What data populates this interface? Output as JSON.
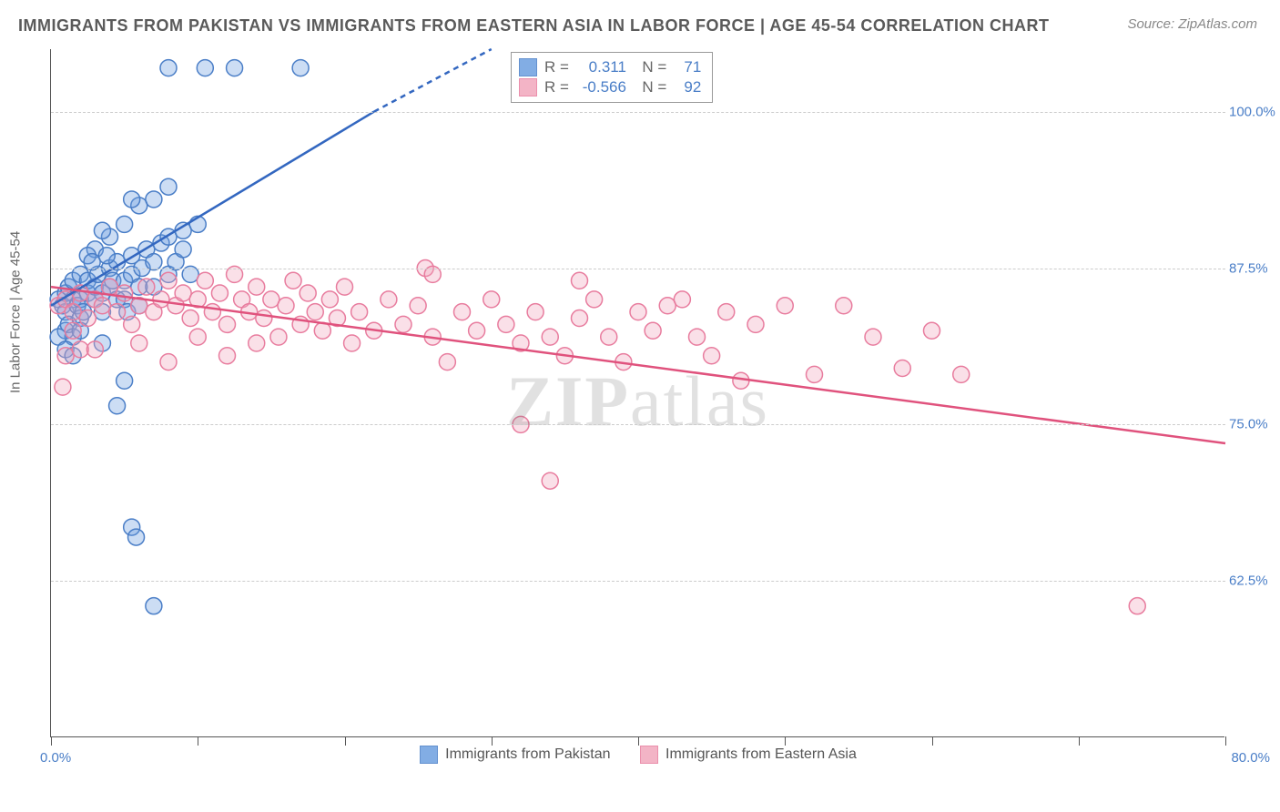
{
  "title": "IMMIGRANTS FROM PAKISTAN VS IMMIGRANTS FROM EASTERN ASIA IN LABOR FORCE | AGE 45-54 CORRELATION CHART",
  "source_label": "Source: ZipAtlas.com",
  "ylabel": "In Labor Force | Age 45-54",
  "watermark": {
    "bold": "ZIP",
    "thin": "atlas"
  },
  "chart": {
    "type": "scatter-with-regression",
    "background_color": "#ffffff",
    "grid_color": "#cccccc",
    "grid_dash": "4,4",
    "axis_color": "#555555",
    "xlim": [
      0,
      80
    ],
    "ylim": [
      50,
      105
    ],
    "yticks": [
      62.5,
      75.0,
      87.5,
      100.0
    ],
    "ytick_labels": [
      "62.5%",
      "75.0%",
      "87.5%",
      "100.0%"
    ],
    "xticks": [
      0,
      10,
      20,
      30,
      40,
      50,
      60,
      70,
      80
    ],
    "xlabel_min": "0.0%",
    "xlabel_max": "80.0%",
    "label_fontsize": 15,
    "label_color": "#4a7ec7",
    "marker_radius": 9,
    "marker_fill_opacity": 0.35,
    "marker_stroke_width": 1.5,
    "line_width": 2.5,
    "series": [
      {
        "name": "Immigrants from Pakistan",
        "color": "#6d9fe0",
        "stroke": "#4a7ec7",
        "line_color": "#3367c0",
        "R": "0.311",
        "N": "71",
        "regression": {
          "x1": 0,
          "y1": 84.5,
          "x2": 22,
          "y2": 100,
          "x2_dash": 30,
          "y2_dash": 105
        },
        "points": [
          [
            0.5,
            85
          ],
          [
            0.8,
            84.5
          ],
          [
            1,
            85.5
          ],
          [
            1,
            84
          ],
          [
            1.2,
            86
          ],
          [
            1.5,
            85
          ],
          [
            1.5,
            86.5
          ],
          [
            1.8,
            84.5
          ],
          [
            2,
            85
          ],
          [
            2,
            87
          ],
          [
            1,
            82.5
          ],
          [
            1.2,
            83
          ],
          [
            1.5,
            82
          ],
          [
            2,
            83.5
          ],
          [
            2.2,
            84
          ],
          [
            2.5,
            85.5
          ],
          [
            2.5,
            86.5
          ],
          [
            3,
            85
          ],
          [
            3,
            86
          ],
          [
            3.2,
            87
          ],
          [
            3.5,
            85.5
          ],
          [
            3.5,
            84
          ],
          [
            4,
            86
          ],
          [
            4,
            87.5
          ],
          [
            4.2,
            86.5
          ],
          [
            4.5,
            85
          ],
          [
            4.5,
            88
          ],
          [
            5,
            86.5
          ],
          [
            5,
            85
          ],
          [
            5.2,
            84
          ],
          [
            5.5,
            87
          ],
          [
            5.5,
            88.5
          ],
          [
            6,
            86
          ],
          [
            6,
            84.5
          ],
          [
            6.2,
            87.5
          ],
          [
            6.5,
            89
          ],
          [
            7,
            86
          ],
          [
            7,
            88
          ],
          [
            7.5,
            89.5
          ],
          [
            8,
            87
          ],
          [
            8,
            90
          ],
          [
            8.5,
            88
          ],
          [
            9,
            89
          ],
          [
            9,
            90.5
          ],
          [
            9.5,
            87
          ],
          [
            10,
            91
          ],
          [
            3,
            89
          ],
          [
            4,
            90
          ],
          [
            5,
            91
          ],
          [
            6,
            92.5
          ],
          [
            7,
            93
          ],
          [
            8,
            94
          ],
          [
            2.5,
            88.5
          ],
          [
            3.5,
            90.5
          ],
          [
            5.5,
            93
          ],
          [
            0.5,
            82
          ],
          [
            1,
            81
          ],
          [
            1.5,
            80.5
          ],
          [
            2,
            82.5
          ],
          [
            3.5,
            81.5
          ],
          [
            5,
            78.5
          ],
          [
            5.5,
            66.8
          ],
          [
            5.8,
            66
          ],
          [
            7,
            60.5
          ],
          [
            8,
            103.5
          ],
          [
            10.5,
            103.5
          ],
          [
            12.5,
            103.5
          ],
          [
            17,
            103.5
          ],
          [
            4.5,
            76.5
          ],
          [
            2.8,
            88
          ],
          [
            3.8,
            88.5
          ]
        ]
      },
      {
        "name": "Immigrants from Eastern Asia",
        "color": "#f2a7bd",
        "stroke": "#e87c9e",
        "line_color": "#e0527d",
        "R": "-0.566",
        "N": "92",
        "regression": {
          "x1": 0,
          "y1": 86,
          "x2": 80,
          "y2": 73.5
        },
        "points": [
          [
            0.5,
            84.5
          ],
          [
            1,
            85
          ],
          [
            1.5,
            84
          ],
          [
            2,
            85.5
          ],
          [
            2.5,
            83.5
          ],
          [
            3,
            85
          ],
          [
            3.5,
            84.5
          ],
          [
            4,
            86
          ],
          [
            4.5,
            84
          ],
          [
            5,
            85.5
          ],
          [
            5.5,
            83
          ],
          [
            6,
            84.5
          ],
          [
            6.5,
            86
          ],
          [
            7,
            84
          ],
          [
            7.5,
            85
          ],
          [
            8,
            86.5
          ],
          [
            8.5,
            84.5
          ],
          [
            9,
            85.5
          ],
          [
            9.5,
            83.5
          ],
          [
            10,
            85
          ],
          [
            10.5,
            86.5
          ],
          [
            11,
            84
          ],
          [
            11.5,
            85.5
          ],
          [
            12,
            83
          ],
          [
            12.5,
            87
          ],
          [
            13,
            85
          ],
          [
            13.5,
            84
          ],
          [
            14,
            86
          ],
          [
            14.5,
            83.5
          ],
          [
            15,
            85
          ],
          [
            15.5,
            82
          ],
          [
            16,
            84.5
          ],
          [
            16.5,
            86.5
          ],
          [
            17,
            83
          ],
          [
            17.5,
            85.5
          ],
          [
            18,
            84
          ],
          [
            18.5,
            82.5
          ],
          [
            19,
            85
          ],
          [
            19.5,
            83.5
          ],
          [
            20,
            86
          ],
          [
            20.5,
            81.5
          ],
          [
            21,
            84
          ],
          [
            22,
            82.5
          ],
          [
            23,
            85
          ],
          [
            24,
            83
          ],
          [
            25,
            84.5
          ],
          [
            25.5,
            87.5
          ],
          [
            26,
            82
          ],
          [
            27,
            80
          ],
          [
            28,
            84
          ],
          [
            29,
            82.5
          ],
          [
            30,
            85
          ],
          [
            31,
            83
          ],
          [
            32,
            81.5
          ],
          [
            33,
            84
          ],
          [
            34,
            82
          ],
          [
            35,
            80.5
          ],
          [
            36,
            83.5
          ],
          [
            37,
            85
          ],
          [
            38,
            82
          ],
          [
            39,
            80
          ],
          [
            40,
            84
          ],
          [
            41,
            82.5
          ],
          [
            42,
            84.5
          ],
          [
            43,
            85
          ],
          [
            44,
            82
          ],
          [
            45,
            80.5
          ],
          [
            46,
            84
          ],
          [
            48,
            83
          ],
          [
            50,
            84.5
          ],
          [
            52,
            79
          ],
          [
            54,
            84.5
          ],
          [
            56,
            82
          ],
          [
            58,
            79.5
          ],
          [
            60,
            82.5
          ],
          [
            62,
            79
          ],
          [
            47,
            78.5
          ],
          [
            34,
            70.5
          ],
          [
            32,
            75
          ],
          [
            1,
            80.5
          ],
          [
            2,
            81
          ],
          [
            0.8,
            78
          ],
          [
            1.5,
            82.5
          ],
          [
            3,
            81
          ],
          [
            6,
            81.5
          ],
          [
            8,
            80
          ],
          [
            10,
            82
          ],
          [
            12,
            80.5
          ],
          [
            14,
            81.5
          ],
          [
            74,
            60.5
          ],
          [
            26,
            87
          ],
          [
            36,
            86.5
          ]
        ]
      }
    ]
  },
  "legend_bottom_label_1": "Immigrants from Pakistan",
  "legend_bottom_label_2": "Immigrants from Eastern Asia"
}
